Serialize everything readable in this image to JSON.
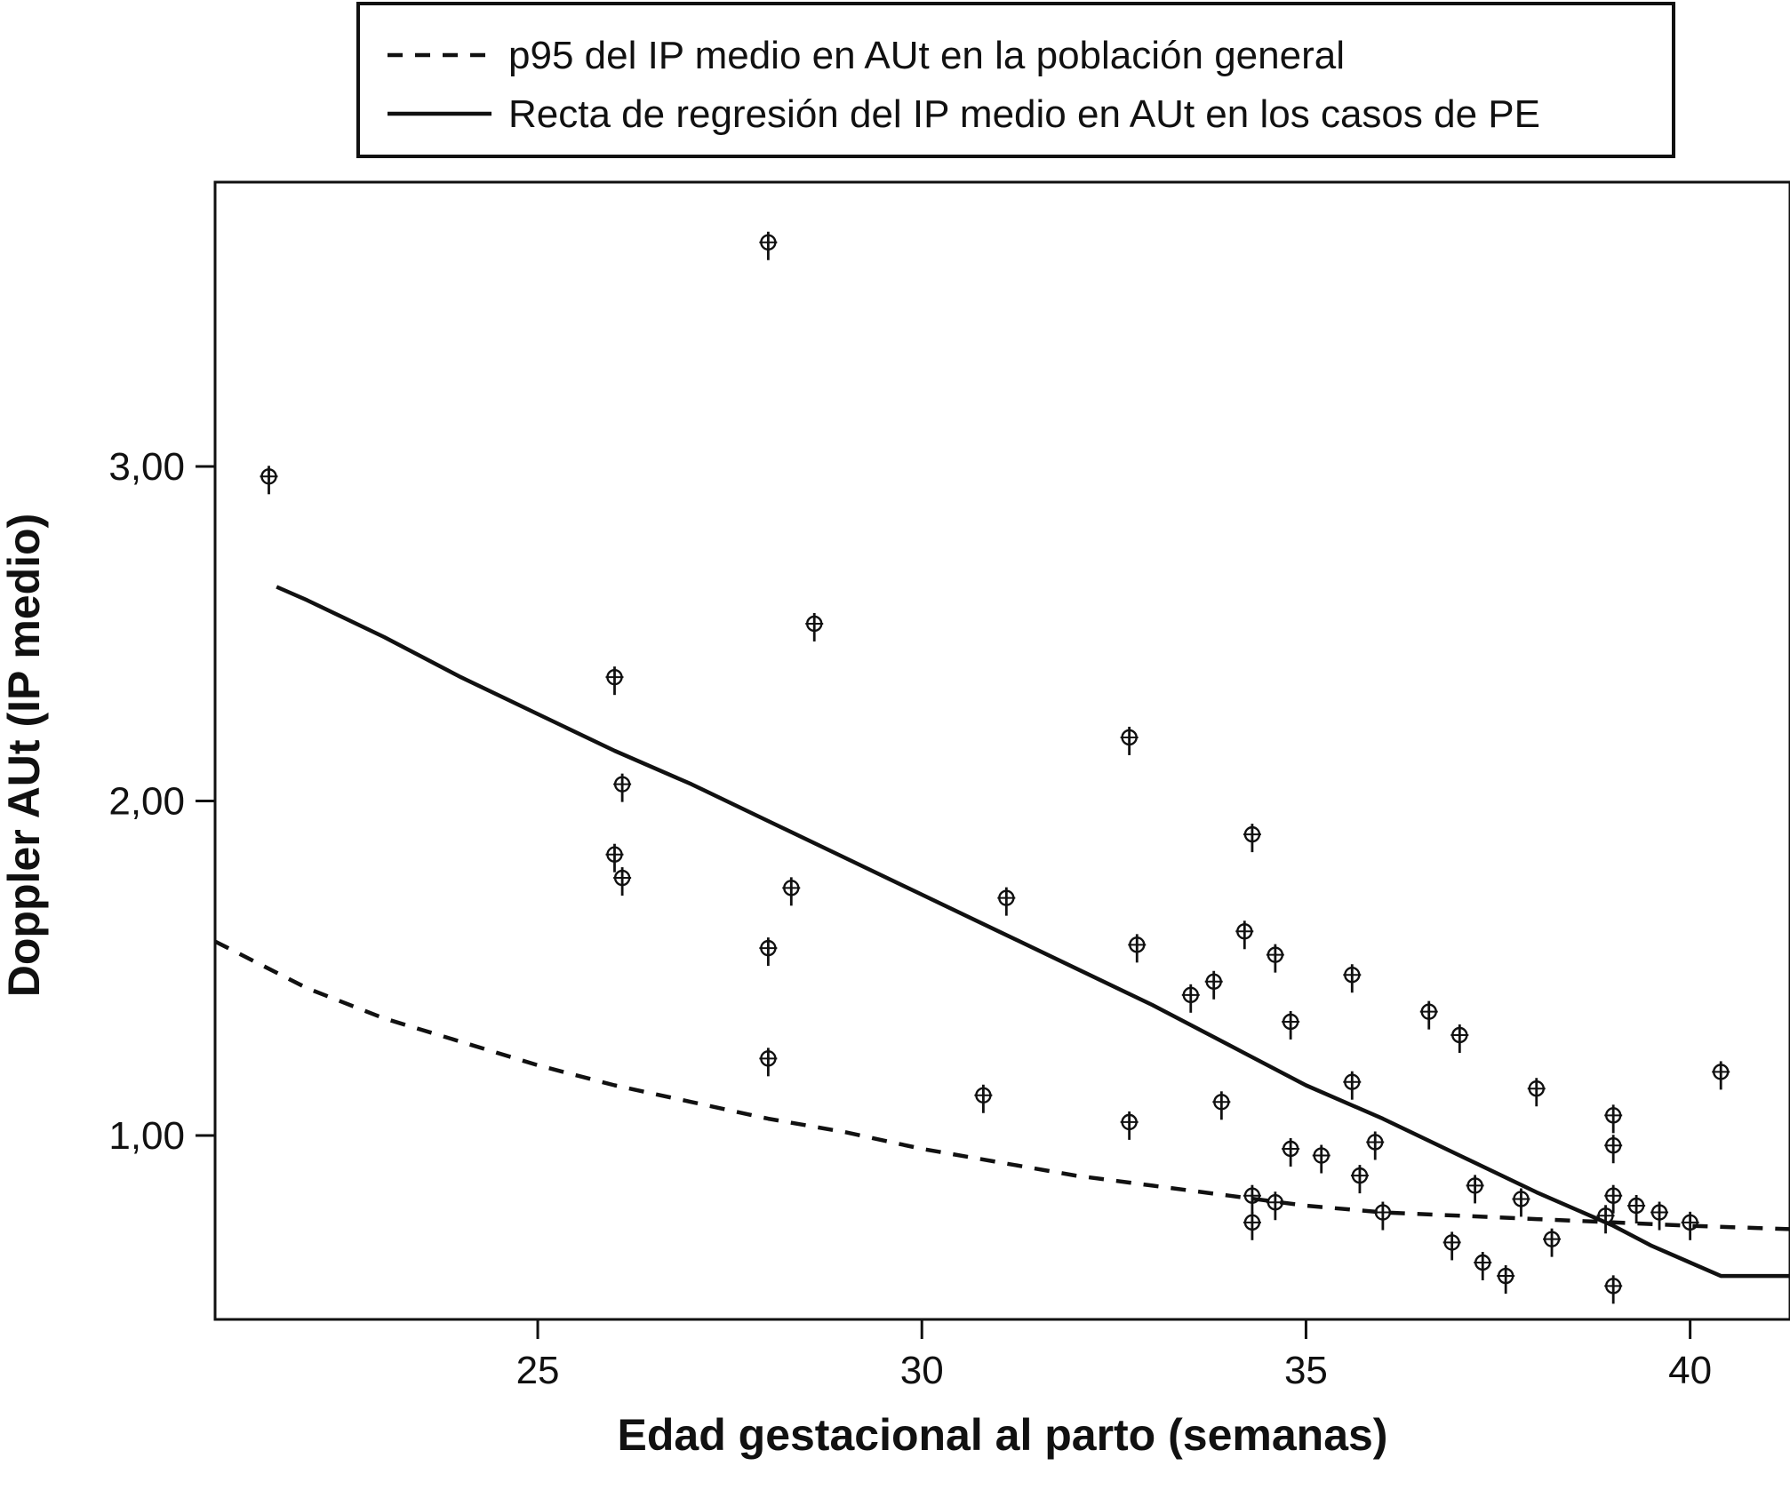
{
  "chart_data": {
    "type": "scatter",
    "xlabel": "Edad gestacional al parto (semanas)",
    "ylabel": "Doppler AUt (IP medio)",
    "xlim": [
      20.8,
      41.3
    ],
    "ylim": [
      0.45,
      3.85
    ],
    "x_ticks": [
      {
        "value": 25,
        "label": "25"
      },
      {
        "value": 30,
        "label": "30"
      },
      {
        "value": 35,
        "label": "35"
      },
      {
        "value": 40,
        "label": "40"
      }
    ],
    "y_ticks": [
      {
        "value": 1,
        "label": "1,00"
      },
      {
        "value": 2,
        "label": "2,00"
      },
      {
        "value": 3,
        "label": "3,00"
      }
    ],
    "grid": false,
    "legend_position": "top, outside plot",
    "legend": [
      {
        "label": "p95 del IP medio en AUt en la población general",
        "style": "dashed"
      },
      {
        "label": "Recta de regresión del IP medio en AUt en los casos de PE",
        "style": "solid"
      }
    ],
    "points": [
      {
        "x": 21.5,
        "y": 2.97
      },
      {
        "x": 28.0,
        "y": 3.67
      },
      {
        "x": 28.6,
        "y": 2.53
      },
      {
        "x": 26.0,
        "y": 2.37
      },
      {
        "x": 26.1,
        "y": 2.05
      },
      {
        "x": 26.0,
        "y": 1.84
      },
      {
        "x": 26.1,
        "y": 1.77
      },
      {
        "x": 28.3,
        "y": 1.74
      },
      {
        "x": 28.0,
        "y": 1.56
      },
      {
        "x": 28.0,
        "y": 1.23
      },
      {
        "x": 31.1,
        "y": 1.71
      },
      {
        "x": 30.8,
        "y": 1.12
      },
      {
        "x": 32.7,
        "y": 2.19
      },
      {
        "x": 32.8,
        "y": 1.57
      },
      {
        "x": 32.7,
        "y": 1.04
      },
      {
        "x": 33.5,
        "y": 1.42
      },
      {
        "x": 33.8,
        "y": 1.46
      },
      {
        "x": 33.9,
        "y": 1.1
      },
      {
        "x": 34.2,
        "y": 1.61
      },
      {
        "x": 34.3,
        "y": 1.9
      },
      {
        "x": 34.6,
        "y": 1.54
      },
      {
        "x": 34.8,
        "y": 1.34
      },
      {
        "x": 34.8,
        "y": 0.96
      },
      {
        "x": 34.3,
        "y": 0.82
      },
      {
        "x": 34.6,
        "y": 0.8
      },
      {
        "x": 34.3,
        "y": 0.74
      },
      {
        "x": 35.2,
        "y": 0.94
      },
      {
        "x": 35.6,
        "y": 1.48
      },
      {
        "x": 35.6,
        "y": 1.16
      },
      {
        "x": 35.9,
        "y": 0.98
      },
      {
        "x": 35.7,
        "y": 0.88
      },
      {
        "x": 36.0,
        "y": 0.77
      },
      {
        "x": 36.6,
        "y": 1.37
      },
      {
        "x": 37.0,
        "y": 1.3
      },
      {
        "x": 37.2,
        "y": 0.85
      },
      {
        "x": 36.9,
        "y": 0.68
      },
      {
        "x": 37.3,
        "y": 0.62
      },
      {
        "x": 37.6,
        "y": 0.58
      },
      {
        "x": 37.8,
        "y": 0.81
      },
      {
        "x": 38.0,
        "y": 1.14
      },
      {
        "x": 38.2,
        "y": 0.69
      },
      {
        "x": 39.0,
        "y": 1.06
      },
      {
        "x": 39.0,
        "y": 0.97
      },
      {
        "x": 39.0,
        "y": 0.82
      },
      {
        "x": 38.9,
        "y": 0.76
      },
      {
        "x": 39.3,
        "y": 0.79
      },
      {
        "x": 39.6,
        "y": 0.77
      },
      {
        "x": 40.0,
        "y": 0.74
      },
      {
        "x": 39.0,
        "y": 0.55
      },
      {
        "x": 40.4,
        "y": 1.19
      }
    ],
    "series": [
      {
        "style": "dashed",
        "x": [
          20.8,
          22.0,
          23.0,
          24.0,
          25.0,
          26.0,
          27.0,
          28.0,
          29.0,
          30.0,
          31.0,
          32.0,
          33.0,
          34.0,
          35.0,
          36.0,
          37.0,
          38.0,
          39.0,
          40.0,
          41.3
        ],
        "y": [
          1.58,
          1.44,
          1.35,
          1.28,
          1.21,
          1.15,
          1.1,
          1.05,
          1.01,
          0.96,
          0.92,
          0.88,
          0.85,
          0.82,
          0.79,
          0.77,
          0.76,
          0.75,
          0.74,
          0.73,
          0.72
        ]
      },
      {
        "style": "solid",
        "x": [
          21.6,
          22.0,
          23.0,
          24.0,
          25.0,
          26.0,
          27.0,
          28.0,
          29.0,
          30.0,
          31.0,
          32.0,
          33.0,
          34.0,
          35.0,
          36.0,
          37.0,
          38.0,
          39.0,
          39.5,
          40.0,
          40.4,
          41.3
        ],
        "y": [
          2.64,
          2.6,
          2.49,
          2.37,
          2.26,
          2.15,
          2.05,
          1.94,
          1.83,
          1.72,
          1.61,
          1.5,
          1.39,
          1.27,
          1.15,
          1.05,
          0.94,
          0.83,
          0.73,
          0.67,
          0.62,
          0.58,
          0.58
        ]
      }
    ]
  }
}
